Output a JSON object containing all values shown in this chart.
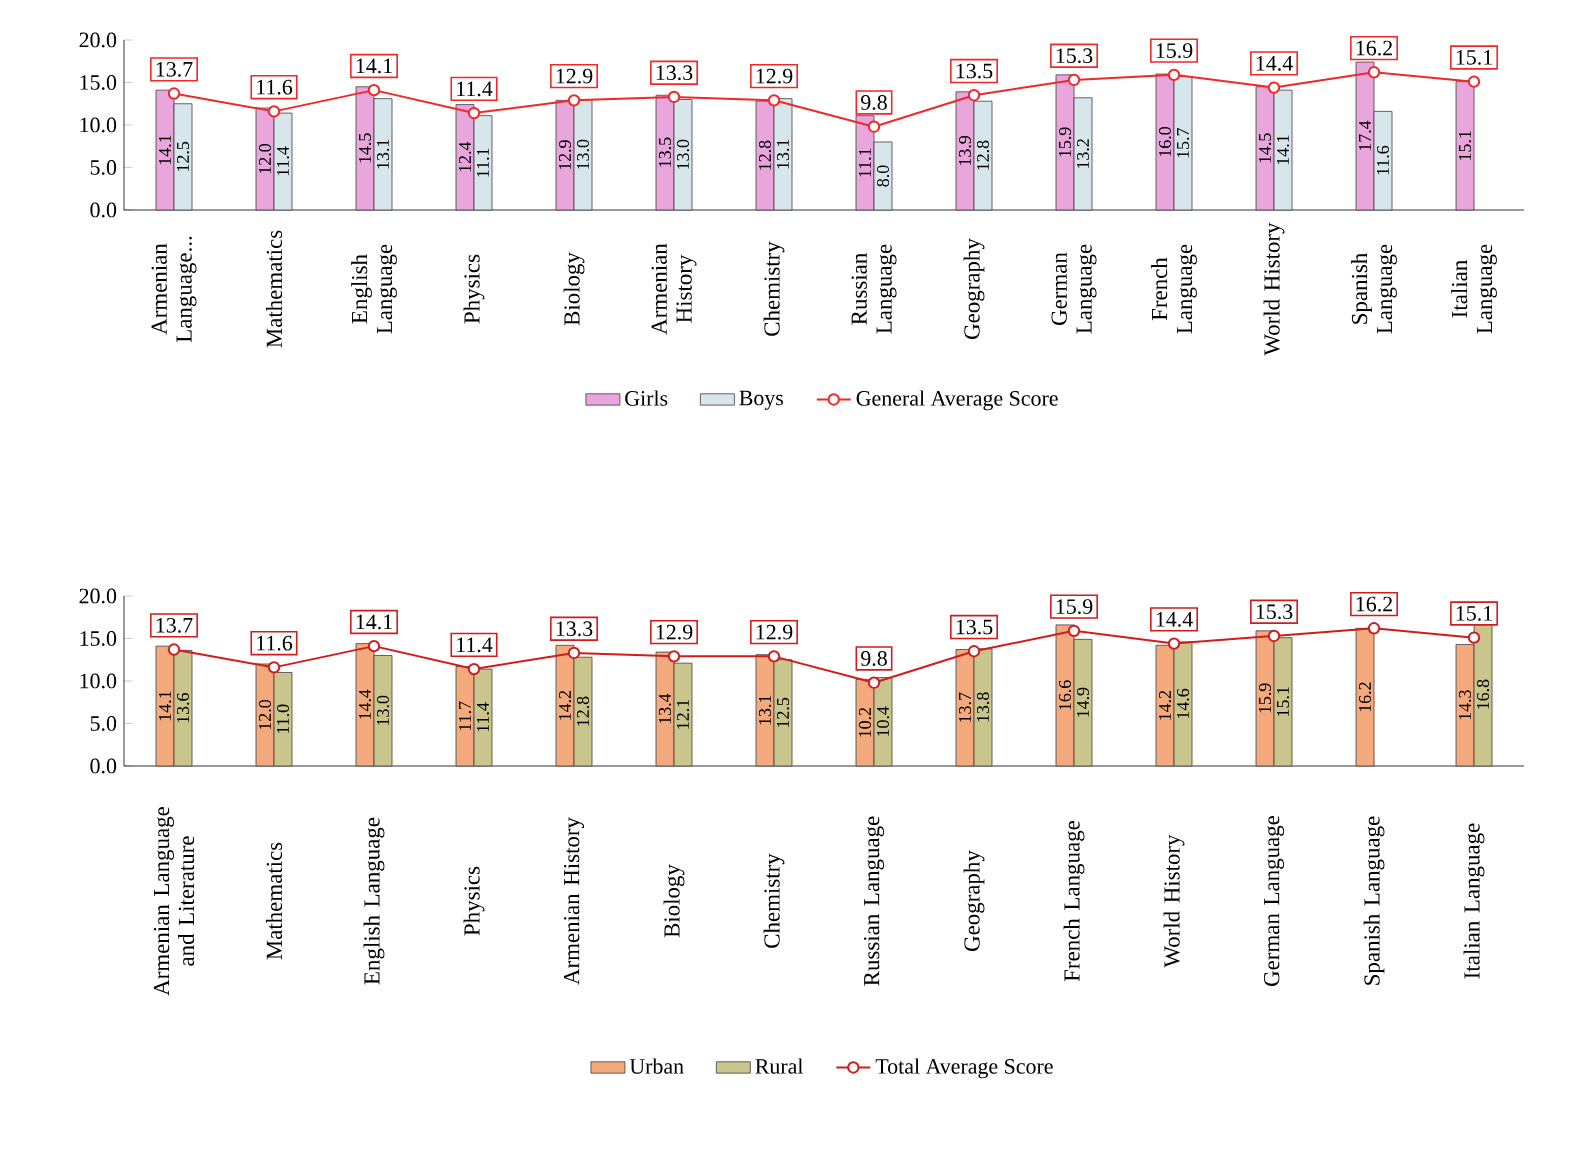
{
  "chart_data": [
    {
      "type": "bar",
      "categories": [
        "Armenian Language...",
        "Mathematics",
        "English Language",
        "Physics",
        "Biology",
        "Armenian History",
        "Chemistry",
        "Russian Language",
        "Geography",
        "German Language",
        "French Language",
        "World History",
        "Spanish Language",
        "Italian Language"
      ],
      "series": [
        {
          "name": "Girls",
          "color": "#e8a6dc",
          "values": [
            14.1,
            12.0,
            14.5,
            12.4,
            12.9,
            13.5,
            12.8,
            11.1,
            13.9,
            15.9,
            16.0,
            14.5,
            17.4,
            15.1
          ],
          "value_labels": [
            "14.1",
            "12.0",
            "14.5",
            "12.4",
            "12.9",
            "13.5",
            "12.8",
            "11.1",
            "13.9",
            "15.9",
            "16.0",
            "14.5",
            "17.4",
            "15.1"
          ]
        },
        {
          "name": "Boys",
          "color": "#d6e6ea",
          "values": [
            12.5,
            11.4,
            13.1,
            11.1,
            13.0,
            13.0,
            13.1,
            8.0,
            12.8,
            13.2,
            15.7,
            14.1,
            11.6,
            null
          ],
          "value_labels": [
            "12.5",
            "11.4",
            "13.1",
            "11.1",
            "13.0",
            "13.0",
            "13.1",
            "8.0",
            "12.8",
            "13.2",
            "15.7",
            "14.1",
            "11.6",
            null
          ]
        },
        {
          "name": "General Average Score",
          "type": "line",
          "color": "#f02828",
          "marker": "circle",
          "values": [
            13.7,
            11.6,
            14.1,
            11.4,
            12.9,
            13.3,
            12.9,
            9.8,
            13.5,
            15.3,
            15.9,
            14.4,
            16.2,
            15.1
          ],
          "value_labels": [
            "13.7",
            "11.6",
            "14.1",
            "11.4",
            "12.9",
            "13.3",
            "12.9",
            "9.8",
            "13.5",
            "15.3",
            "15.9",
            "14.4",
            "16.2",
            "15.1"
          ]
        }
      ],
      "ylim": [
        0,
        20
      ],
      "yticks": [
        {
          "value": 0,
          "label": "0.0"
        },
        {
          "value": 5,
          "label": "5.0"
        },
        {
          "value": 10,
          "label": "10.0"
        },
        {
          "value": 15,
          "label": "15.0"
        },
        {
          "value": 20,
          "label": "20.0"
        }
      ],
      "legend": "bottom"
    },
    {
      "type": "bar",
      "categories": [
        "Armenian Language and Literature",
        "Mathematics",
        "English Language",
        "Physics",
        "Armenian History",
        "Biology",
        "Chemistry",
        "Russian Language",
        "Geography",
        "French Language",
        "World History",
        "German Language",
        "Spanish Language",
        "Italian Language"
      ],
      "series": [
        {
          "name": "Urban",
          "color": "#f4aa7c",
          "values": [
            14.1,
            12.0,
            14.4,
            11.7,
            14.2,
            13.4,
            13.1,
            10.2,
            13.7,
            16.6,
            14.2,
            15.9,
            16.2,
            14.3
          ],
          "value_labels": [
            "14.1",
            "12.0",
            "14.4",
            "11.7",
            "14.2",
            "13.4",
            "13.1",
            "10.2",
            "13.7",
            "16.6",
            "14.2",
            "15.9",
            "16.2",
            "14.3"
          ]
        },
        {
          "name": "Rural",
          "color": "#c9c58c",
          "values": [
            13.6,
            11.0,
            13.0,
            11.4,
            12.8,
            12.1,
            12.5,
            10.4,
            13.8,
            14.9,
            14.6,
            15.1,
            null,
            16.8
          ],
          "value_labels": [
            "13.6",
            "11.0",
            "13.0",
            "11.4",
            "12.8",
            "12.1",
            "12.5",
            "10.4",
            "13.8",
            "14.9",
            "14.6",
            "15.1",
            null,
            "16.8"
          ]
        },
        {
          "name": "Total Average Score",
          "type": "line",
          "color": "#d01c1c",
          "marker": "circle",
          "values": [
            13.7,
            11.6,
            14.1,
            11.4,
            13.3,
            12.9,
            12.9,
            9.8,
            13.5,
            15.9,
            14.4,
            15.3,
            16.2,
            15.1
          ],
          "value_labels": [
            "13.7",
            "11.6",
            "14.1",
            "11.4",
            "13.3",
            "12.9",
            "12.9",
            "9.8",
            "13.5",
            "15.9",
            "14.4",
            "15.3",
            "16.2",
            "15.1"
          ]
        }
      ],
      "ylim": [
        0,
        20
      ],
      "yticks": [
        {
          "value": 0,
          "label": "0.0"
        },
        {
          "value": 5,
          "label": "5.0"
        },
        {
          "value": 10,
          "label": "10.0"
        },
        {
          "value": 15,
          "label": "15.0"
        },
        {
          "value": 20,
          "label": "20.0"
        }
      ],
      "legend": "bottom"
    }
  ]
}
